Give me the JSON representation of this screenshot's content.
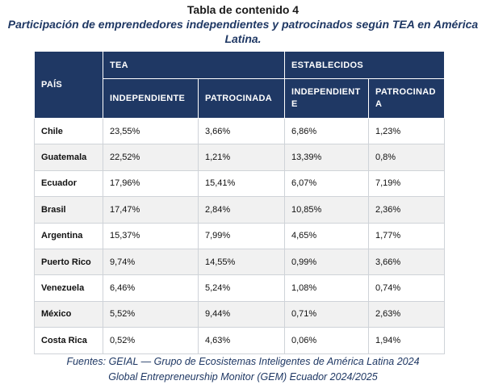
{
  "title": "Tabla de contenido 4",
  "subtitle_line1": "Participación de emprendedores independientes y patrocinados según TEA en América",
  "subtitle_line2": "Latina.",
  "table": {
    "headers": {
      "country": "PAÍS",
      "group_tea": "TEA",
      "group_established": "ESTABLECIDOS",
      "tea_independent": "INDEPENDIENTE",
      "tea_sponsored": "PATROCINADA",
      "est_independent": "INDEPENDIENTE",
      "est_sponsored": "PATROCINADA"
    },
    "rows": [
      {
        "country": "Chile",
        "tea_ind": "23,55%",
        "tea_pat": "3,66%",
        "est_ind": "6,86%",
        "est_pat": "1,23%"
      },
      {
        "country": "Guatemala",
        "tea_ind": "22,52%",
        "tea_pat": "1,21%",
        "est_ind": "13,39%",
        "est_pat": "0,8%"
      },
      {
        "country": "Ecuador",
        "tea_ind": "17,96%",
        "tea_pat": "15,41%",
        "est_ind": "6,07%",
        "est_pat": "7,19%"
      },
      {
        "country": "Brasil",
        "tea_ind": "17,47%",
        "tea_pat": "2,84%",
        "est_ind": "10,85%",
        "est_pat": "2,36%"
      },
      {
        "country": "Argentina",
        "tea_ind": "15,37%",
        "tea_pat": "7,99%",
        "est_ind": "4,65%",
        "est_pat": "1,77%"
      },
      {
        "country": "Puerto Rico",
        "tea_ind": "9,74%",
        "tea_pat": "14,55%",
        "est_ind": "0,99%",
        "est_pat": "3,66%"
      },
      {
        "country": "Venezuela",
        "tea_ind": "6,46%",
        "tea_pat": "5,24%",
        "est_ind": "1,08%",
        "est_pat": "0,74%"
      },
      {
        "country": "México",
        "tea_ind": "5,52%",
        "tea_pat": "9,44%",
        "est_ind": "0,71%",
        "est_pat": "2,63%"
      },
      {
        "country": "Costa Rica",
        "tea_ind": "0,52%",
        "tea_pat": "4,63%",
        "est_ind": "0,06%",
        "est_pat": "1,94%"
      }
    ]
  },
  "footer_line1": "Fuentes: GEIAL — Grupo de Ecosistemas Inteligentes de América Latina 2024",
  "footer_line2": "Global Entrepreneurship Monitor (GEM) Ecuador 2024/2025",
  "colors": {
    "header_bg": "#1f3864",
    "subtitle_text": "#1f3864",
    "alt_row_bg": "#f1f1f1"
  }
}
